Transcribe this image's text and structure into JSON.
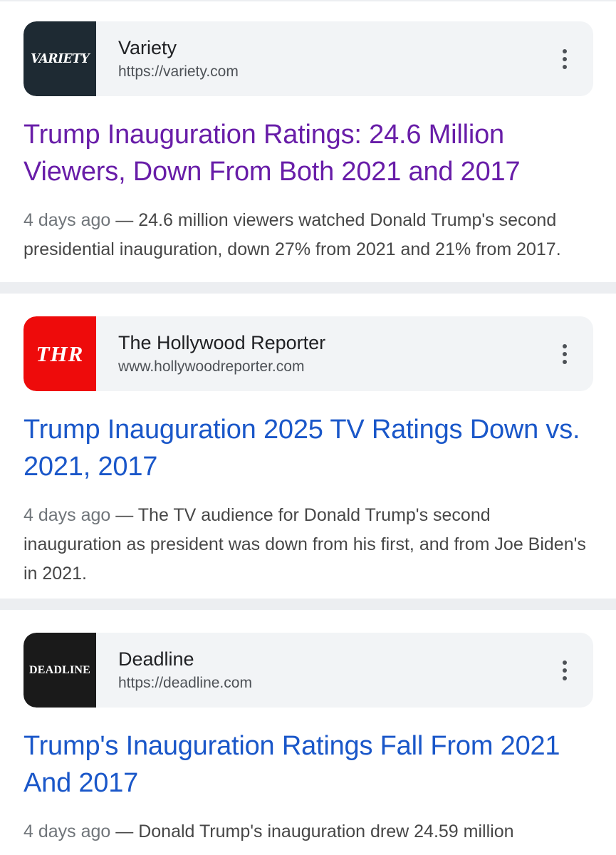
{
  "results": [
    {
      "source_name": "Variety",
      "source_url": "https://variety.com",
      "favicon_text": "VARIETY",
      "favicon_icon": "variety-logo-icon",
      "title": "Trump Inauguration Ratings: 24.6 Million Viewers, Down From Both 2021 and 2017",
      "visited": true,
      "date": "4 days ago",
      "snippet": " — 24.6 million viewers watched Donald Trump's second presidential inauguration, down 27% from 2021 and 21% from 2017."
    },
    {
      "source_name": "The Hollywood Reporter",
      "source_url": "www.hollywoodreporter.com",
      "favicon_text": "THR",
      "favicon_icon": "thr-logo-icon",
      "title": "Trump Inauguration 2025 TV Ratings Down vs. 2021, 2017",
      "visited": false,
      "date": "4 days ago",
      "snippet": " — The TV audience for Donald Trump's second inauguration as president was down from his first, and from Joe Biden's in 2021."
    },
    {
      "source_name": "Deadline",
      "source_url": "https://deadline.com",
      "favicon_text": "DEADLINE",
      "favicon_icon": "deadline-logo-icon",
      "title": "Trump's Inauguration Ratings Fall From 2021 And 2017",
      "visited": false,
      "date": "4 days ago",
      "snippet": " — Donald Trump's inauguration drew 24.59 million"
    }
  ],
  "colors": {
    "visited_link": "#681da8",
    "link": "#1a57c9",
    "card_background": "#f2f4f6",
    "separator": "#eceef1",
    "variety_favicon": "#1e2a33",
    "thr_favicon": "#ee0b0b",
    "deadline_favicon": "#1a1a1a"
  },
  "icons": {
    "menu": "more-vert-icon"
  }
}
